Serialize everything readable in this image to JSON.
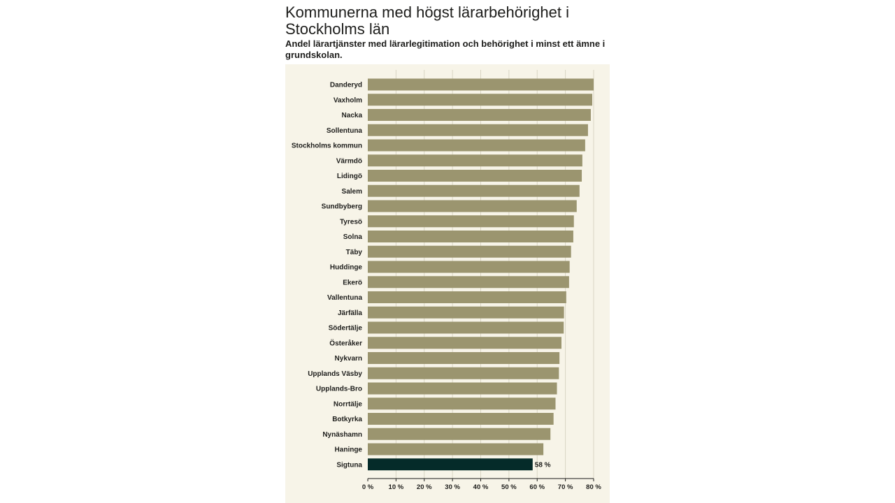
{
  "title": "Kommunerna med högst lärarbehörighet i Stockholms län",
  "subtitle": "Andel lärartjänster med lärarlegitimation och behörighet i minst ett ämne i grundskolan.",
  "colors": {
    "bar": "#9b956f",
    "highlight": "#052b29",
    "background": "#f7f4e8",
    "grid": "#d9d5c3",
    "axis": "#1d1d1b"
  },
  "chart_data": {
    "type": "bar",
    "orientation": "horizontal",
    "title": "Kommunerna med högst lärarbehörighet i Stockholms län",
    "subtitle": "Andel lärartjänster med lärarlegitimation och behörighet i minst ett ämne i grundskolan.",
    "xlim": [
      0,
      80
    ],
    "xticks": [
      0,
      10,
      20,
      30,
      40,
      50,
      60,
      70,
      80
    ],
    "xtick_labels": [
      "0 %",
      "10 %",
      "20 %",
      "30 %",
      "40 %",
      "50 %",
      "60 %",
      "70 %",
      "80 %"
    ],
    "grid": true,
    "categories": [
      "Danderyd",
      "Vaxholm",
      "Nacka",
      "Sollentuna",
      "Stockholms kommun",
      "Värmdö",
      "Lidingö",
      "Salem",
      "Sundbyberg",
      "Tyresö",
      "Solna",
      "Täby",
      "Huddinge",
      "Ekerö",
      "Vallentuna",
      "Järfälla",
      "Södertälje",
      "Österåker",
      "Nykvarn",
      "Upplands Väsby",
      "Upplands-Bro",
      "Norrtälje",
      "Botkyrka",
      "Nynäshamn",
      "Haninge",
      "Sigtuna"
    ],
    "values": [
      80,
      79.5,
      79,
      78,
      77,
      76,
      75.8,
      75,
      74,
      73,
      72.8,
      72,
      71.5,
      71.3,
      70.3,
      69.5,
      69.4,
      68.6,
      67.9,
      67.7,
      67,
      66.5,
      65.8,
      64.7,
      62.2,
      58.4
    ],
    "highlight_index": 25,
    "data_labels": [
      {
        "category": "Sigtuna",
        "text": "58 %"
      }
    ]
  }
}
